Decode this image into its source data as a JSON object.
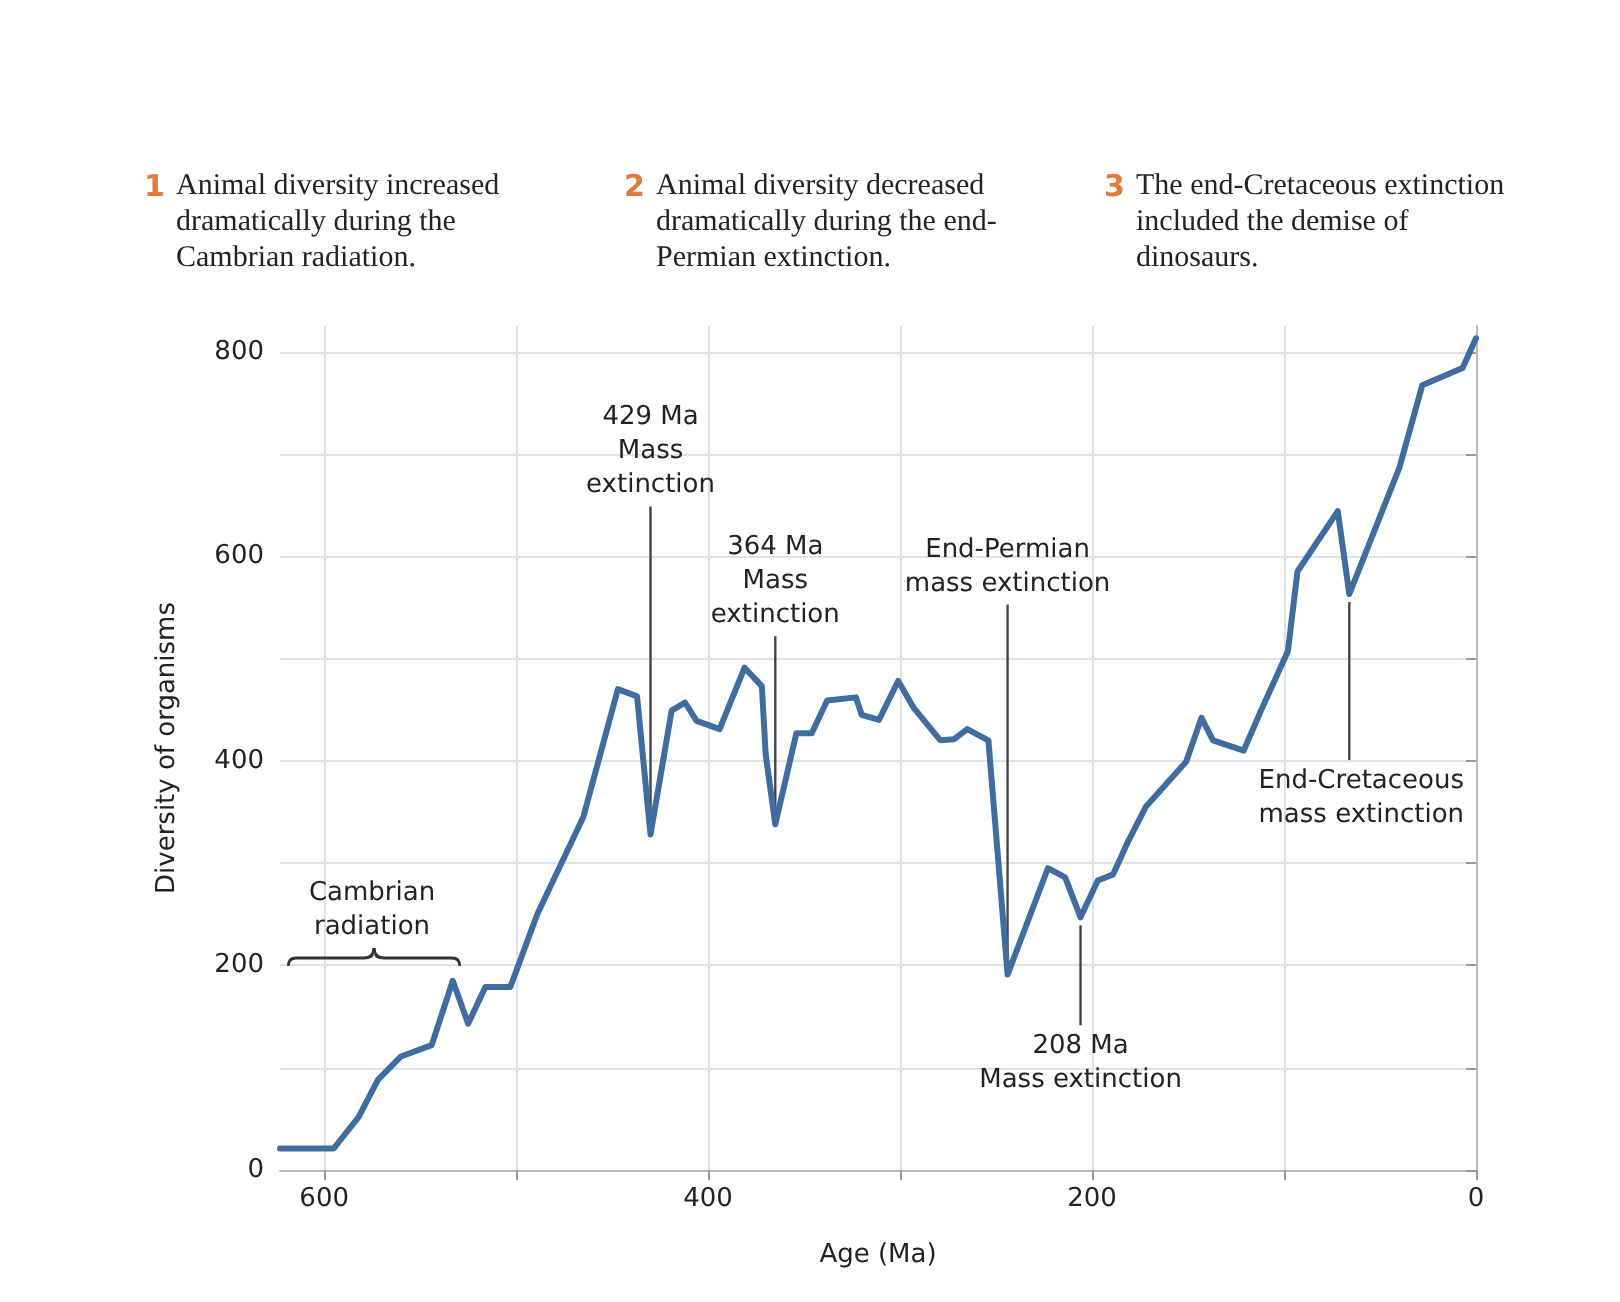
{
  "chart_data": {
    "type": "line",
    "xlabel": "Age (Ma)",
    "ylabel": "Diversity of organisms",
    "annotations": [
      "1 Animal diversity increased dramatically during the Cambrian radiation.",
      "2 Animal diversity decreased dramatically during the end-Permian extinction.",
      "3 The end-Cretaceous extinction included the demise of dinosaurs.",
      "Cambrian\nradiation",
      {
        "text": "429 Ma\nMass\nextinction",
        "x": 430,
        "y": 328
      },
      {
        "text": "364 Ma\nMass\nextinction",
        "x": 365,
        "y": 338
      },
      {
        "text": "End-Permian\nmass extinction",
        "x": 244,
        "y": 191
      },
      {
        "text": "208 Ma\nMass extinction",
        "x": 206,
        "y": 247
      },
      {
        "text": "End-Cretaceous\nmass extinction",
        "x": 66,
        "y": 563
      }
    ],
    "x": [
      623,
      595,
      582,
      572,
      560,
      544,
      533,
      525,
      516,
      503,
      489,
      465,
      447,
      437,
      430,
      419,
      412,
      406,
      394,
      381,
      372,
      370,
      365,
      354,
      346,
      338,
      323,
      320,
      311,
      301,
      293,
      279,
      272,
      265,
      254,
      244,
      223,
      214,
      206,
      197,
      189,
      181,
      172,
      151,
      143,
      137,
      121,
      112,
      98,
      93,
      72,
      66,
      40,
      28,
      7,
      0
    ],
    "series": [
      {
        "color": "#3f6d9f",
        "values": [
          21,
          21,
          52,
          88,
          111,
          122,
          185,
          143,
          179,
          179,
          250,
          345,
          470,
          463,
          328,
          449,
          457,
          439,
          431,
          491,
          473,
          406,
          338,
          427,
          427,
          459,
          462,
          445,
          440,
          478,
          452,
          420,
          421,
          431,
          420,
          191,
          295,
          286,
          247,
          283,
          289,
          322,
          355,
          399,
          442,
          420,
          410,
          449,
          507,
          585,
          644,
          563,
          686,
          767,
          784,
          813
        ]
      }
    ],
    "xlim": [
      623,
      0
    ],
    "xticks": [
      600,
      {
        "value": 500,
        "label": null
      },
      400,
      {
        "value": 300,
        "label": null
      },
      200,
      {
        "value": 100,
        "label": null
      },
      0
    ],
    "ylim": [
      0,
      825
    ],
    "yticks": [
      0,
      {
        "value": 100,
        "label": null
      },
      200,
      {
        "value": 300,
        "label": null
      },
      400,
      {
        "value": 500,
        "label": null
      },
      600,
      {
        "value": 700,
        "label": null
      },
      800
    ],
    "grid": true,
    "marker": "none",
    "line_style": "solid"
  }
}
